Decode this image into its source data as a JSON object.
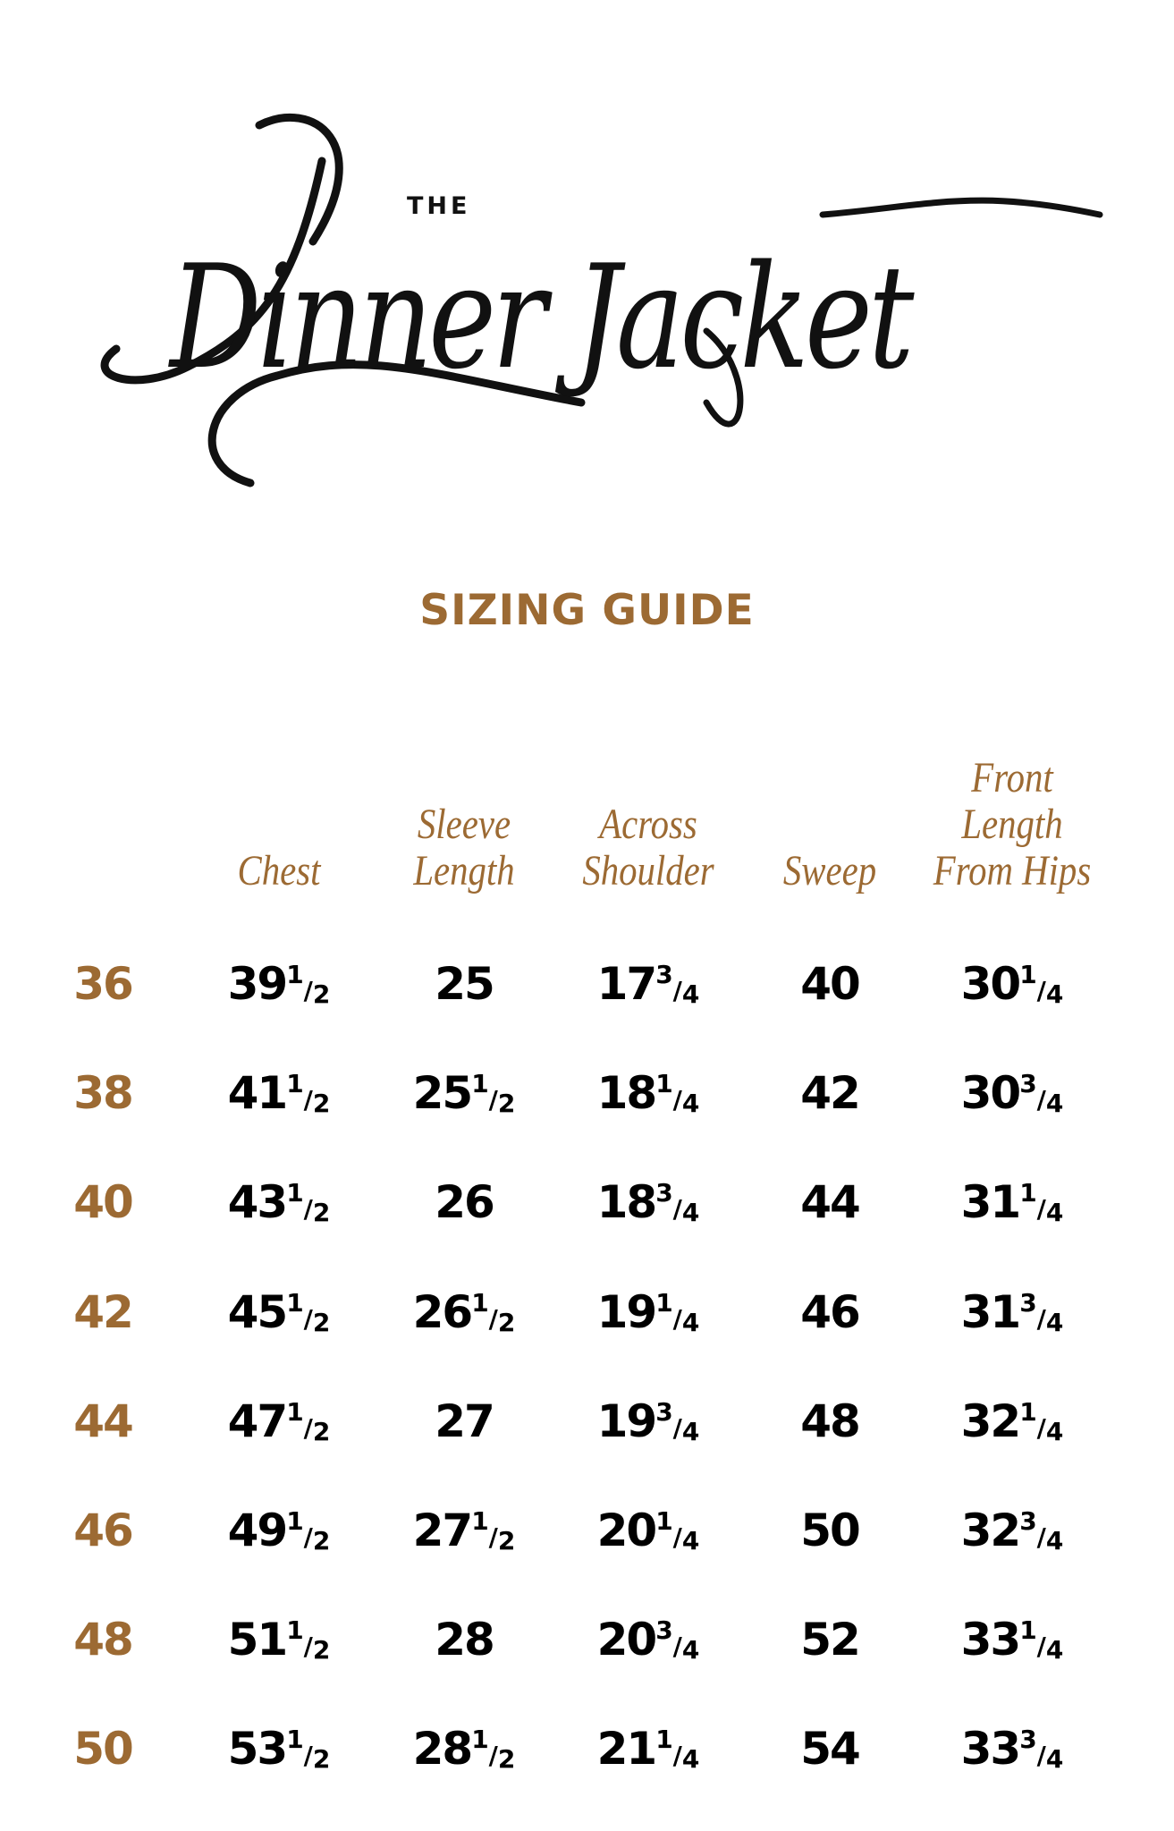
{
  "logo": {
    "the": "THE",
    "script": "Dinner Jacket"
  },
  "title": "SIZING GUIDE",
  "columns": [
    {
      "lines": [
        "Chest"
      ]
    },
    {
      "lines": [
        "Sleeve",
        "Length"
      ]
    },
    {
      "lines": [
        "Across",
        "Shoulder"
      ]
    },
    {
      "lines": [
        "Sweep"
      ]
    },
    {
      "lines": [
        "Front",
        "Length",
        "From Hips"
      ]
    }
  ],
  "rows": [
    {
      "size": "36",
      "values": [
        [
          "39",
          "1",
          "2"
        ],
        [
          "25"
        ],
        [
          "17",
          "3",
          "4"
        ],
        [
          "40"
        ],
        [
          "30",
          "1",
          "4"
        ]
      ]
    },
    {
      "size": "38",
      "values": [
        [
          "41",
          "1",
          "2"
        ],
        [
          "25",
          "1",
          "2"
        ],
        [
          "18",
          "1",
          "4"
        ],
        [
          "42"
        ],
        [
          "30",
          "3",
          "4"
        ]
      ]
    },
    {
      "size": "40",
      "values": [
        [
          "43",
          "1",
          "2"
        ],
        [
          "26"
        ],
        [
          "18",
          "3",
          "4"
        ],
        [
          "44"
        ],
        [
          "31",
          "1",
          "4"
        ]
      ]
    },
    {
      "size": "42",
      "values": [
        [
          "45",
          "1",
          "2"
        ],
        [
          "26",
          "1",
          "2"
        ],
        [
          "19",
          "1",
          "4"
        ],
        [
          "46"
        ],
        [
          "31",
          "3",
          "4"
        ]
      ]
    },
    {
      "size": "44",
      "values": [
        [
          "47",
          "1",
          "2"
        ],
        [
          "27"
        ],
        [
          "19",
          "3",
          "4"
        ],
        [
          "48"
        ],
        [
          "32",
          "1",
          "4"
        ]
      ]
    },
    {
      "size": "46",
      "values": [
        [
          "49",
          "1",
          "2"
        ],
        [
          "27",
          "1",
          "2"
        ],
        [
          "20",
          "1",
          "4"
        ],
        [
          "50"
        ],
        [
          "32",
          "3",
          "4"
        ]
      ]
    },
    {
      "size": "48",
      "values": [
        [
          "51",
          "1",
          "2"
        ],
        [
          "28"
        ],
        [
          "20",
          "3",
          "4"
        ],
        [
          "52"
        ],
        [
          "33",
          "1",
          "4"
        ]
      ]
    },
    {
      "size": "50",
      "values": [
        [
          "53",
          "1",
          "2"
        ],
        [
          "28",
          "1",
          "2"
        ],
        [
          "21",
          "1",
          "4"
        ],
        [
          "54"
        ],
        [
          "33",
          "3",
          "4"
        ]
      ]
    }
  ],
  "colors": {
    "accent": "#9c6a33",
    "text": "#000000"
  }
}
